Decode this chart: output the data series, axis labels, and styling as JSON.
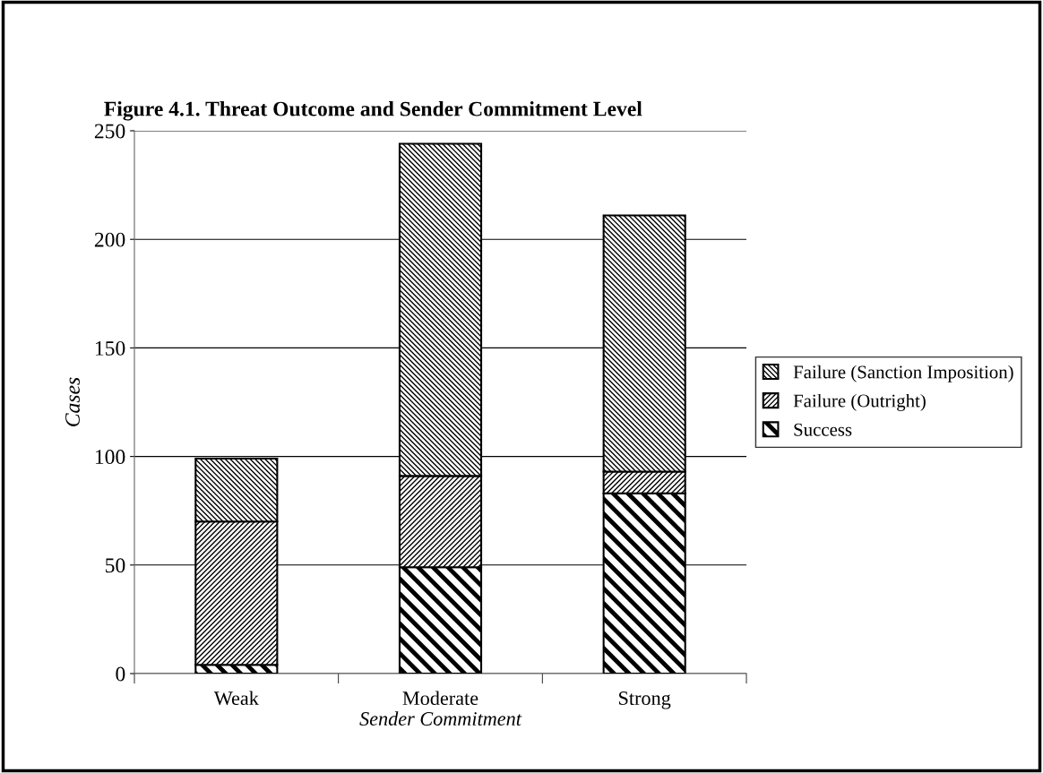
{
  "chart_data": {
    "type": "bar",
    "title": "Figure 4.1. Threat Outcome and Sender Commitment Level",
    "xlabel": "Sender Commitment",
    "ylabel": "Cases",
    "categories": [
      "Weak",
      "Moderate",
      "Strong"
    ],
    "stacked": true,
    "series": [
      {
        "name": "Success",
        "color": "#000000",
        "values": [
          4,
          49,
          83
        ]
      },
      {
        "name": "Failure (Outright)",
        "color": "#000000",
        "values": [
          66,
          42,
          10
        ]
      },
      {
        "name": "Failure (Sanction Imposition)",
        "color": "#000000",
        "values": [
          29,
          153,
          118
        ]
      }
    ],
    "ylim": [
      0,
      250
    ],
    "yticks": [
      0,
      50,
      100,
      150,
      200,
      250
    ],
    "grid": "y",
    "legend": "right"
  }
}
